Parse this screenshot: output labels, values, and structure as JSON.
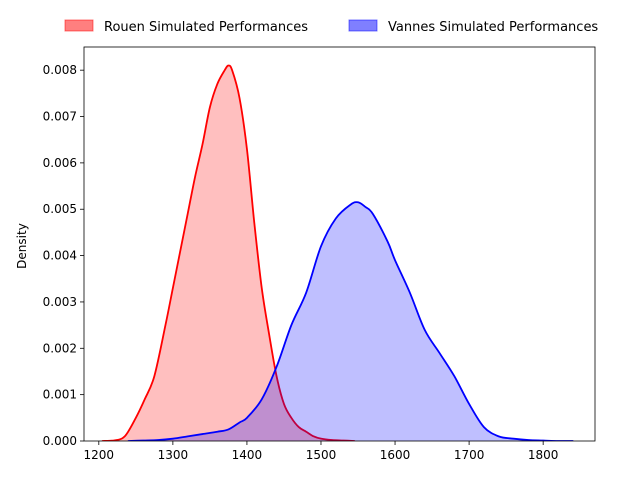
{
  "chart_data": {
    "type": "area",
    "title": "",
    "xlabel": "",
    "ylabel": "Density",
    "xlim": [
      1180,
      1870
    ],
    "ylim": [
      0,
      0.0085
    ],
    "xticks": [
      1200,
      1300,
      1400,
      1500,
      1600,
      1700,
      1800
    ],
    "xtick_labels": [
      "1200",
      "1300",
      "1400",
      "1500",
      "1600",
      "1700",
      "1800"
    ],
    "yticks": [
      0,
      0.001,
      0.002,
      0.003,
      0.004,
      0.005,
      0.006,
      0.007,
      0.008
    ],
    "ytick_labels": [
      "0.000",
      "0.001",
      "0.002",
      "0.003",
      "0.004",
      "0.005",
      "0.006",
      "0.007",
      "0.008"
    ],
    "grid": false,
    "legend_position": "top (above plot)",
    "series": [
      {
        "name": "Rouen Simulated Performances",
        "line_color": "#ff0000",
        "fill_color": "#ff0000",
        "fill_opacity": 0.25,
        "x": [
          1205,
          1220,
          1235,
          1250,
          1262,
          1275,
          1290,
          1300,
          1310,
          1320,
          1330,
          1340,
          1350,
          1360,
          1370,
          1375,
          1380,
          1390,
          1400,
          1410,
          1420,
          1430,
          1440,
          1450,
          1460,
          1470,
          1480,
          1490,
          1500,
          1515,
          1530,
          1545
        ],
        "y": [
          0,
          1e-05,
          0.0001,
          0.0005,
          0.0009,
          0.0014,
          0.0025,
          0.0033,
          0.0041,
          0.0049,
          0.0057,
          0.0064,
          0.0072,
          0.0077,
          0.008,
          0.0081,
          0.008,
          0.0074,
          0.0063,
          0.0047,
          0.0033,
          0.0023,
          0.0014,
          0.0008,
          0.0005,
          0.0003,
          0.0002,
          0.0001,
          5e-05,
          2e-05,
          1e-05,
          0
        ]
      },
      {
        "name": "Vannes Simulated Performances",
        "line_color": "#0000ff",
        "fill_color": "#0000ff",
        "fill_opacity": 0.25,
        "x": [
          1240,
          1260,
          1280,
          1300,
          1320,
          1340,
          1360,
          1375,
          1390,
          1400,
          1420,
          1440,
          1460,
          1480,
          1500,
          1520,
          1540,
          1550,
          1560,
          1570,
          1590,
          1600,
          1620,
          1640,
          1660,
          1680,
          1700,
          1720,
          1740,
          1760,
          1780,
          1800,
          1820,
          1840
        ],
        "y": [
          0,
          1e-05,
          2e-05,
          5e-05,
          0.0001,
          0.00015,
          0.0002,
          0.00025,
          0.0004,
          0.0005,
          0.0009,
          0.0016,
          0.0025,
          0.0032,
          0.0042,
          0.0048,
          0.0051,
          0.00515,
          0.00505,
          0.0049,
          0.0043,
          0.0039,
          0.0032,
          0.0024,
          0.0019,
          0.0014,
          0.0008,
          0.0003,
          0.0001,
          5e-05,
          2e-05,
          1e-05,
          0,
          0
        ]
      }
    ]
  }
}
